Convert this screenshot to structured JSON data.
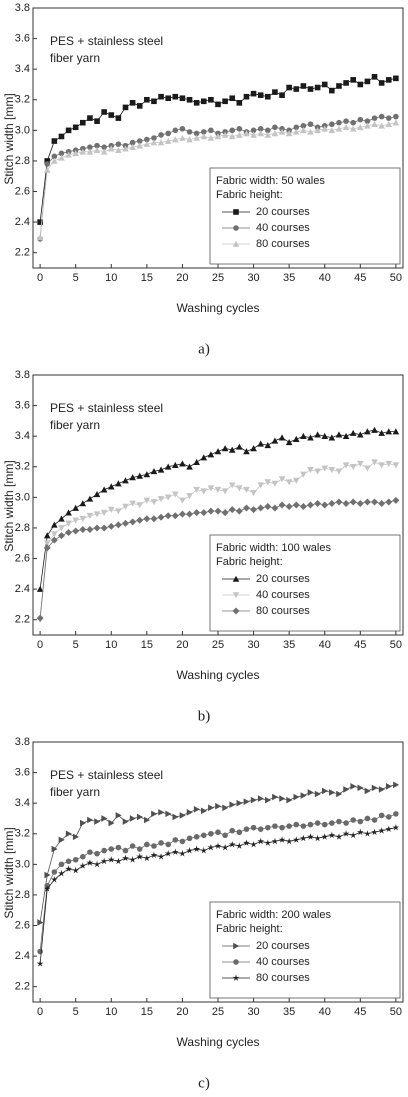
{
  "chart_data": [
    {
      "type": "line",
      "annotation": [
        "PES + stainless steel",
        "fiber yarn"
      ],
      "legend_title": [
        "Fabric width: 50 wales",
        "Fabric height:"
      ],
      "caption": "a)",
      "xlabel": "Washing cycles",
      "ylabel": "Stitch width [mm]",
      "xlim": [
        -1,
        51
      ],
      "ylim": [
        2.1,
        3.8
      ],
      "xticks": [
        0,
        5,
        10,
        15,
        20,
        25,
        30,
        35,
        40,
        45,
        50
      ],
      "yticks": [
        2.2,
        {
          "value": 2.4,
          "label": "2.4"
        },
        2.6,
        2.8,
        {
          "value": 3,
          "label": "3.0"
        },
        3.2,
        3.4,
        3.6,
        3.8
      ],
      "legend": "lower right",
      "x": [
        0,
        1,
        2,
        3,
        4,
        5,
        6,
        7,
        8,
        9,
        10,
        11,
        12,
        13,
        14,
        15,
        16,
        17,
        18,
        19,
        20,
        21,
        22,
        23,
        24,
        25,
        26,
        27,
        28,
        29,
        30,
        31,
        32,
        33,
        34,
        35,
        36,
        37,
        38,
        39,
        40,
        41,
        42,
        43,
        44,
        45,
        46,
        47,
        48,
        49,
        50
      ],
      "series": [
        {
          "name": "20 courses",
          "color": "#1a1a1a",
          "marker": "square",
          "values": [
            2.4,
            2.8,
            2.93,
            2.96,
            3.0,
            3.02,
            3.05,
            3.08,
            3.06,
            3.12,
            3.1,
            3.08,
            3.15,
            3.18,
            3.16,
            3.2,
            3.19,
            3.22,
            3.21,
            3.22,
            3.21,
            3.2,
            3.18,
            3.19,
            3.2,
            3.17,
            3.19,
            3.21,
            3.18,
            3.22,
            3.24,
            3.23,
            3.22,
            3.25,
            3.23,
            3.28,
            3.27,
            3.29,
            3.27,
            3.28,
            3.3,
            3.26,
            3.29,
            3.31,
            3.33,
            3.3,
            3.32,
            3.35,
            3.31,
            3.33,
            3.34
          ]
        },
        {
          "name": "40 courses",
          "color": "#707070",
          "marker": "circle",
          "values": [
            2.29,
            2.78,
            2.83,
            2.85,
            2.86,
            2.87,
            2.88,
            2.89,
            2.9,
            2.89,
            2.9,
            2.91,
            2.9,
            2.92,
            2.93,
            2.94,
            2.95,
            2.97,
            2.98,
            3.0,
            3.01,
            2.99,
            2.98,
            2.99,
            3.0,
            2.98,
            2.99,
            3.0,
            3.01,
            2.99,
            3.0,
            3.01,
            3.0,
            3.02,
            3.01,
            3.0,
            3.02,
            3.03,
            3.04,
            3.02,
            3.03,
            3.04,
            3.05,
            3.06,
            3.05,
            3.07,
            3.06,
            3.08,
            3.09,
            3.08,
            3.09
          ]
        },
        {
          "name": "80 courses",
          "color": "#c4c4c4",
          "marker": "triangle-up",
          "values": [
            2.3,
            2.74,
            2.8,
            2.82,
            2.84,
            2.85,
            2.86,
            2.86,
            2.87,
            2.86,
            2.88,
            2.87,
            2.88,
            2.89,
            2.9,
            2.91,
            2.92,
            2.92,
            2.93,
            2.94,
            2.95,
            2.94,
            2.95,
            2.96,
            2.95,
            2.96,
            2.97,
            2.96,
            2.97,
            2.98,
            2.97,
            2.98,
            2.97,
            2.98,
            2.99,
            2.98,
            2.99,
            3.0,
            2.99,
            3.0,
            3.01,
            3.0,
            3.01,
            3.02,
            3.01,
            3.02,
            3.03,
            3.04,
            3.03,
            3.04,
            3.05
          ]
        }
      ]
    },
    {
      "type": "line",
      "annotation": [
        "PES + stainless steel",
        "fiber yarn"
      ],
      "legend_title": [
        "Fabric width: 100 wales",
        "Fabric height:"
      ],
      "caption": "b)",
      "xlabel": "Washing cycles",
      "ylabel": "Stitch width [mm]",
      "xlim": [
        -1,
        51
      ],
      "ylim": [
        2.1,
        3.8
      ],
      "xticks": [
        0,
        5,
        10,
        15,
        20,
        25,
        30,
        35,
        40,
        45,
        50
      ],
      "yticks": [
        2.2,
        {
          "value": 2.4,
          "label": "2.4"
        },
        2.6,
        2.8,
        {
          "value": 3,
          "label": "3.0"
        },
        3.2,
        3.4,
        3.6,
        3.8
      ],
      "legend": "lower right",
      "x": [
        0,
        1,
        2,
        3,
        4,
        5,
        6,
        7,
        8,
        9,
        10,
        11,
        12,
        13,
        14,
        15,
        16,
        17,
        18,
        19,
        20,
        21,
        22,
        23,
        24,
        25,
        26,
        27,
        28,
        29,
        30,
        31,
        32,
        33,
        34,
        35,
        36,
        37,
        38,
        39,
        40,
        41,
        42,
        43,
        44,
        45,
        46,
        47,
        48,
        49,
        50
      ],
      "series": [
        {
          "name": "20 courses",
          "color": "#1a1a1a",
          "marker": "triangle-up",
          "values": [
            2.4,
            2.75,
            2.82,
            2.86,
            2.9,
            2.93,
            2.96,
            2.99,
            3.02,
            3.05,
            3.07,
            3.09,
            3.11,
            3.13,
            3.14,
            3.15,
            3.17,
            3.18,
            3.2,
            3.21,
            3.22,
            3.2,
            3.23,
            3.26,
            3.28,
            3.3,
            3.32,
            3.31,
            3.33,
            3.3,
            3.32,
            3.35,
            3.34,
            3.37,
            3.39,
            3.36,
            3.38,
            3.4,
            3.39,
            3.41,
            3.4,
            3.39,
            3.41,
            3.4,
            3.42,
            3.41,
            3.43,
            3.44,
            3.42,
            3.43,
            3.43
          ]
        },
        {
          "name": "40 courses",
          "color": "#c4c4c4",
          "marker": "triangle-down",
          "values": [
            2.2,
            2.7,
            2.76,
            2.8,
            2.83,
            2.85,
            2.86,
            2.88,
            2.89,
            2.9,
            2.92,
            2.91,
            2.94,
            2.96,
            2.95,
            2.98,
            2.97,
            2.99,
            3.0,
            3.02,
            2.98,
            3.01,
            3.05,
            3.04,
            3.06,
            3.05,
            3.04,
            3.08,
            3.06,
            3.05,
            3.03,
            3.08,
            3.1,
            3.09,
            3.12,
            3.1,
            3.11,
            3.15,
            3.18,
            3.17,
            3.19,
            3.18,
            3.17,
            3.21,
            3.2,
            3.22,
            3.19,
            3.23,
            3.21,
            3.22,
            3.21
          ]
        },
        {
          "name": "80 courses",
          "color": "#707070",
          "marker": "diamond",
          "values": [
            2.21,
            2.67,
            2.72,
            2.75,
            2.77,
            2.78,
            2.79,
            2.79,
            2.8,
            2.8,
            2.81,
            2.82,
            2.83,
            2.84,
            2.85,
            2.86,
            2.86,
            2.87,
            2.88,
            2.88,
            2.89,
            2.89,
            2.9,
            2.9,
            2.91,
            2.91,
            2.9,
            2.92,
            2.91,
            2.93,
            2.92,
            2.93,
            2.94,
            2.93,
            2.95,
            2.94,
            2.95,
            2.94,
            2.95,
            2.96,
            2.95,
            2.96,
            2.97,
            2.96,
            2.97,
            2.96,
            2.97,
            2.97,
            2.96,
            2.97,
            2.98
          ]
        }
      ]
    },
    {
      "type": "line",
      "annotation": [
        "PES + stainless steel",
        "fiber yarn"
      ],
      "legend_title": [
        "Fabric width: 200 wales",
        "Fabric height:"
      ],
      "caption": "c)",
      "xlabel": "Washing cycles",
      "ylabel": "Stitch width [mm]",
      "xlim": [
        -1,
        51
      ],
      "ylim": [
        2.1,
        3.8
      ],
      "xticks": [
        0,
        5,
        10,
        15,
        20,
        25,
        30,
        35,
        40,
        45,
        50
      ],
      "yticks": [
        2.2,
        {
          "value": 2.4,
          "label": "2.4"
        },
        2.6,
        2.8,
        {
          "value": 3,
          "label": "3.0"
        },
        3.2,
        3.4,
        3.6,
        3.8
      ],
      "legend": "lower right",
      "x": [
        0,
        1,
        2,
        3,
        4,
        5,
        6,
        7,
        8,
        9,
        10,
        11,
        12,
        13,
        14,
        15,
        16,
        17,
        18,
        19,
        20,
        21,
        22,
        23,
        24,
        25,
        26,
        27,
        28,
        29,
        30,
        31,
        32,
        33,
        34,
        35,
        36,
        37,
        38,
        39,
        40,
        41,
        42,
        43,
        44,
        45,
        46,
        47,
        48,
        49,
        50
      ],
      "series": [
        {
          "name": "20 courses",
          "color": "#505050",
          "marker": "triangle-right",
          "values": [
            2.62,
            2.93,
            3.1,
            3.16,
            3.2,
            3.18,
            3.27,
            3.29,
            3.28,
            3.3,
            3.27,
            3.32,
            3.28,
            3.3,
            3.31,
            3.29,
            3.33,
            3.34,
            3.33,
            3.31,
            3.32,
            3.34,
            3.36,
            3.35,
            3.37,
            3.38,
            3.37,
            3.39,
            3.4,
            3.41,
            3.42,
            3.43,
            3.42,
            3.44,
            3.43,
            3.42,
            3.44,
            3.45,
            3.47,
            3.46,
            3.48,
            3.47,
            3.46,
            3.49,
            3.51,
            3.5,
            3.48,
            3.5,
            3.49,
            3.51,
            3.52
          ]
        },
        {
          "name": "40 courses",
          "color": "#6a6a6a",
          "marker": "circle",
          "values": [
            2.43,
            2.86,
            2.95,
            3.0,
            3.02,
            3.03,
            3.05,
            3.08,
            3.07,
            3.09,
            3.1,
            3.11,
            3.09,
            3.12,
            3.1,
            3.13,
            3.12,
            3.14,
            3.13,
            3.16,
            3.15,
            3.17,
            3.18,
            3.19,
            3.2,
            3.21,
            3.19,
            3.22,
            3.21,
            3.23,
            3.24,
            3.23,
            3.24,
            3.25,
            3.24,
            3.25,
            3.26,
            3.25,
            3.26,
            3.27,
            3.26,
            3.27,
            3.28,
            3.27,
            3.29,
            3.28,
            3.3,
            3.29,
            3.32,
            3.31,
            3.33
          ]
        },
        {
          "name": "80 courses",
          "color": "#222222",
          "marker": "star",
          "values": [
            2.35,
            2.84,
            2.9,
            2.94,
            2.97,
            2.96,
            2.99,
            3.01,
            3.0,
            3.02,
            3.03,
            3.02,
            3.04,
            3.03,
            3.05,
            3.04,
            3.06,
            3.05,
            3.07,
            3.08,
            3.07,
            3.09,
            3.1,
            3.09,
            3.11,
            3.12,
            3.11,
            3.13,
            3.12,
            3.14,
            3.13,
            3.15,
            3.14,
            3.15,
            3.16,
            3.15,
            3.16,
            3.17,
            3.18,
            3.17,
            3.18,
            3.19,
            3.18,
            3.2,
            3.19,
            3.21,
            3.2,
            3.21,
            3.22,
            3.23,
            3.24
          ]
        }
      ]
    }
  ]
}
